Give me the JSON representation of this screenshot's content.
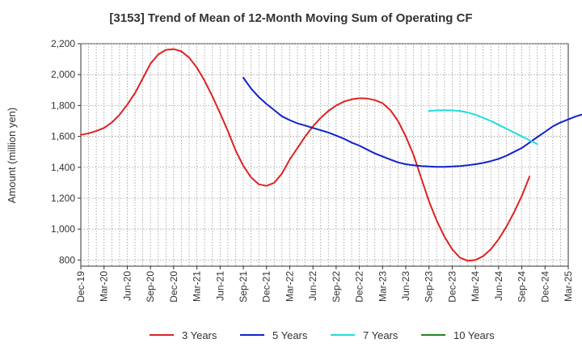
{
  "chart_data": {
    "type": "line",
    "title": "[3153]  Trend of Mean of 12-Month Moving Sum of Operating CF",
    "xlabel": "",
    "ylabel": "Amount (million yen)",
    "ylim": [
      760,
      2200
    ],
    "yticks": [
      800,
      1000,
      1200,
      1400,
      1600,
      1800,
      2000,
      2200
    ],
    "ytick_labels": [
      "800",
      "1,000",
      "1,200",
      "1,400",
      "1,600",
      "1,800",
      "2,000",
      "2,200"
    ],
    "x_labels": [
      "Dec-19",
      "Mar-20",
      "Jun-20",
      "Sep-20",
      "Dec-20",
      "Mar-21",
      "Jun-21",
      "Sep-21",
      "Dec-21",
      "Mar-22",
      "Jun-22",
      "Sep-22",
      "Dec-22",
      "Mar-23",
      "Jun-23",
      "Sep-23",
      "Dec-23",
      "Mar-24",
      "Jun-24",
      "Sep-24",
      "Dec-24",
      "Mar-25"
    ],
    "grid": true,
    "legend_position": "bottom",
    "series": [
      {
        "name": "3 Years",
        "color": "#dd2222",
        "start_month_index": 0,
        "values": [
          1610,
          1620,
          1635,
          1655,
          1690,
          1740,
          1805,
          1880,
          1975,
          2070,
          2130,
          2160,
          2165,
          2150,
          2110,
          2045,
          1960,
          1860,
          1750,
          1635,
          1510,
          1410,
          1335,
          1290,
          1280,
          1300,
          1360,
          1450,
          1525,
          1600,
          1665,
          1720,
          1765,
          1800,
          1825,
          1840,
          1847,
          1845,
          1835,
          1815,
          1770,
          1700,
          1600,
          1480,
          1330,
          1180,
          1055,
          950,
          870,
          815,
          795,
          800,
          825,
          870,
          935,
          1015,
          1110,
          1215,
          1340
        ]
      },
      {
        "name": "5 Years",
        "color": "#1122cc",
        "start_month_index": 21,
        "values": [
          1980,
          1910,
          1855,
          1810,
          1770,
          1730,
          1705,
          1685,
          1670,
          1655,
          1640,
          1625,
          1605,
          1585,
          1560,
          1540,
          1515,
          1490,
          1470,
          1450,
          1432,
          1420,
          1413,
          1408,
          1405,
          1403,
          1403,
          1405,
          1408,
          1413,
          1420,
          1428,
          1440,
          1455,
          1475,
          1500,
          1525,
          1560,
          1595,
          1630,
          1665,
          1690,
          1710,
          1730,
          1745
        ]
      },
      {
        "name": "7 Years",
        "color": "#22dddd",
        "start_month_index": 45,
        "values": [
          1765,
          1768,
          1770,
          1768,
          1765,
          1755,
          1740,
          1720,
          1700,
          1675,
          1650,
          1625,
          1600,
          1575,
          1550
        ]
      },
      {
        "name": "10 Years",
        "color": "#228822",
        "start_month_index": null,
        "values": []
      }
    ]
  }
}
